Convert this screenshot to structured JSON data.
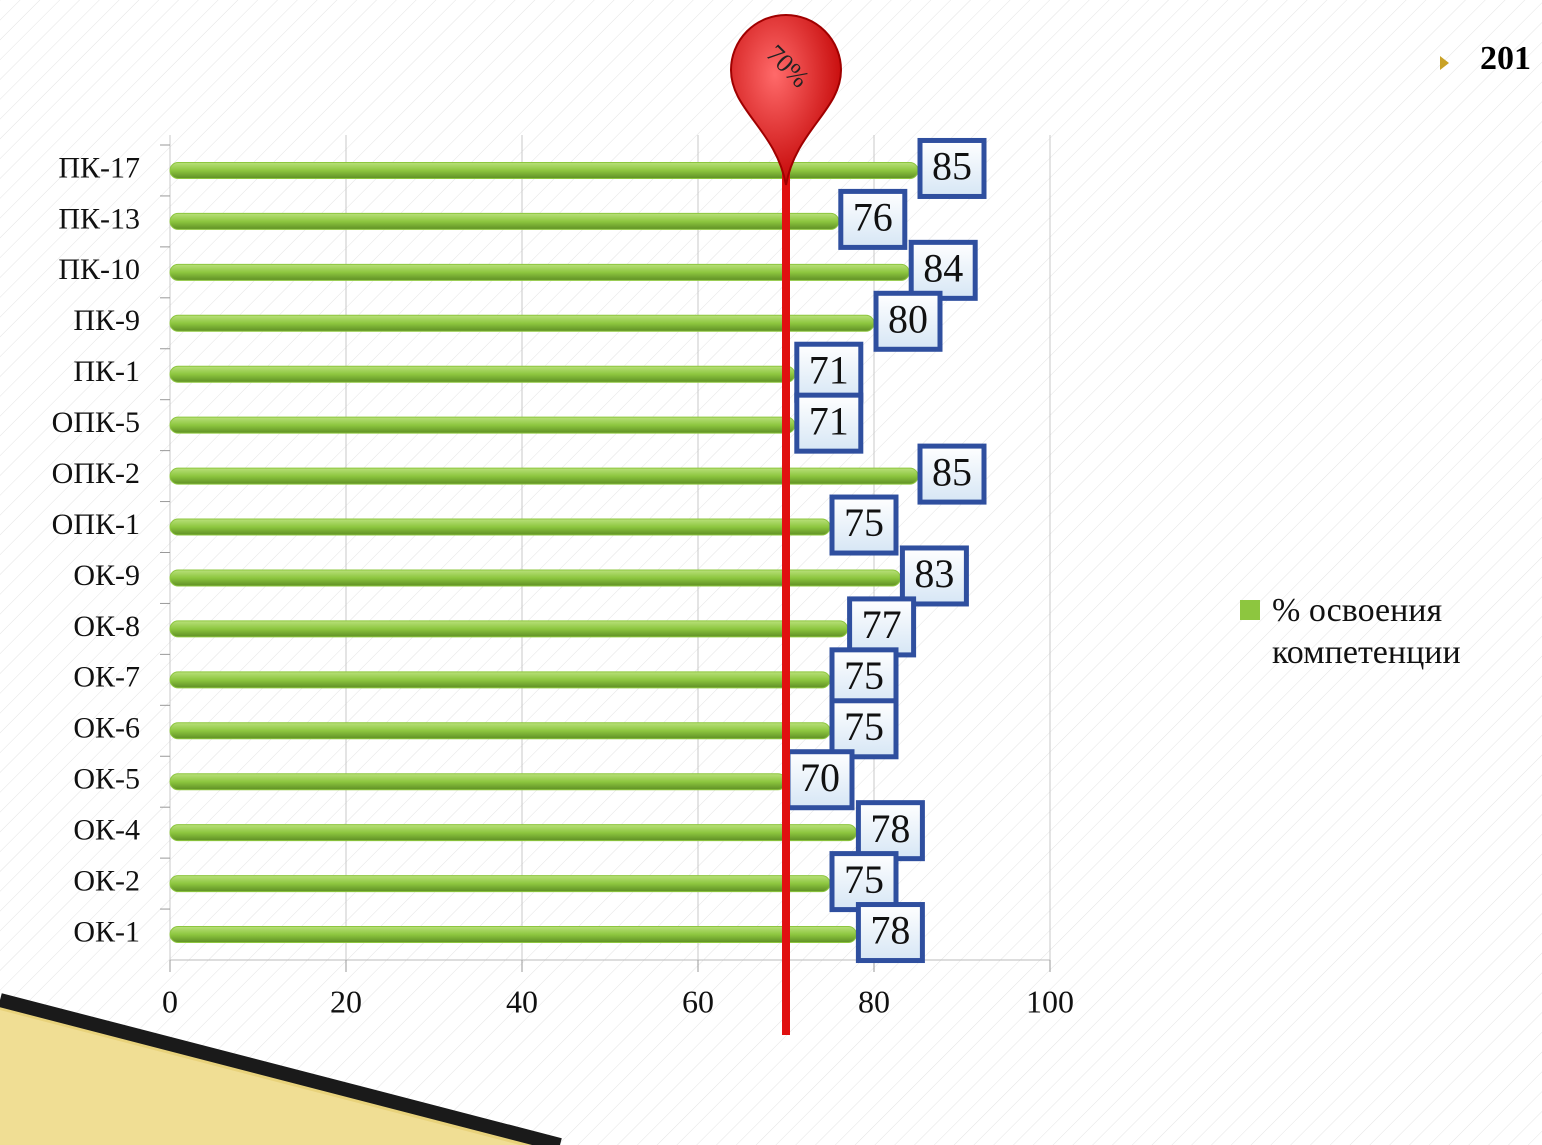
{
  "heading": "201",
  "chart_data": {
    "type": "bar",
    "orientation": "horizontal",
    "categories": [
      "ПК-17",
      "ПК-13",
      "ПК-10",
      "ПК-9",
      "ПК-1",
      "ОПК-5",
      "ОПК-2",
      "ОПК-1",
      "ОК-9",
      "ОК-8",
      "ОК-7",
      "ОК-6",
      "ОК-5",
      "ОК-4",
      "ОК-2",
      "ОК-1"
    ],
    "series": [
      {
        "name": "% освоения компетенции",
        "color": "#8dc63f",
        "values": [
          85,
          76,
          84,
          80,
          71,
          71,
          85,
          75,
          83,
          77,
          75,
          75,
          70,
          78,
          75,
          78
        ]
      }
    ],
    "xlim": [
      0,
      100
    ],
    "xticks": [
      0,
      20,
      40,
      60,
      80,
      100
    ],
    "grid": true,
    "reference_line": {
      "value": 70,
      "label": "70%",
      "color": "#e01010"
    },
    "legend": "right"
  }
}
